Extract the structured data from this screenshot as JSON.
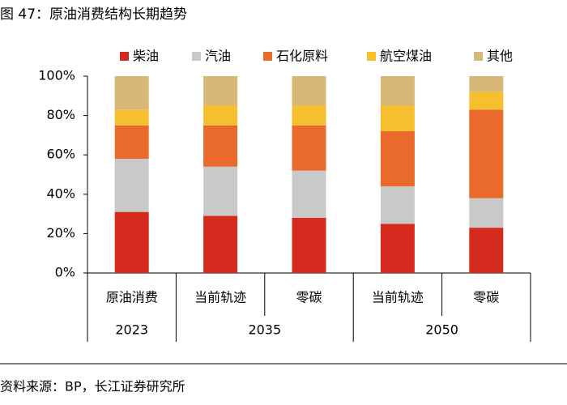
{
  "chart_data": {
    "type": "stacked_bar",
    "title": "图 47：原油消费结构长期趋势",
    "source": "资料来源：BP，长江证券研究所",
    "categories": [
      "原油消费",
      "当前轨迹",
      "零碳",
      "当前轨迹",
      "零碳"
    ],
    "groups": [
      {
        "name": "2023",
        "count": 1
      },
      {
        "name": "2035",
        "count": 2
      },
      {
        "name": "2050",
        "count": 2
      }
    ],
    "series": [
      {
        "name": "柴油",
        "color": "#d52b1e",
        "values": [
          31,
          29,
          28,
          25,
          23
        ]
      },
      {
        "name": "汽油",
        "color": "#c9c9c9",
        "values": [
          27,
          25,
          24,
          19,
          15
        ]
      },
      {
        "name": "石化原料",
        "color": "#ea6a2c",
        "values": [
          17,
          21,
          23,
          28,
          45
        ]
      },
      {
        "name": "航空煤油",
        "color": "#f5bf2e",
        "values": [
          8,
          10,
          10,
          13,
          9
        ]
      },
      {
        "name": "其他",
        "color": "#d8b878",
        "values": [
          17,
          15,
          15,
          15,
          8
        ]
      }
    ],
    "ylim": [
      0,
      100
    ],
    "yticks": [
      {
        "value": 0,
        "label": "0%"
      },
      {
        "value": 20,
        "label": "20%"
      },
      {
        "value": 40,
        "label": "40%"
      },
      {
        "value": 60,
        "label": "60%"
      },
      {
        "value": 80,
        "label": "80%"
      },
      {
        "value": 100,
        "label": "100%"
      }
    ]
  }
}
